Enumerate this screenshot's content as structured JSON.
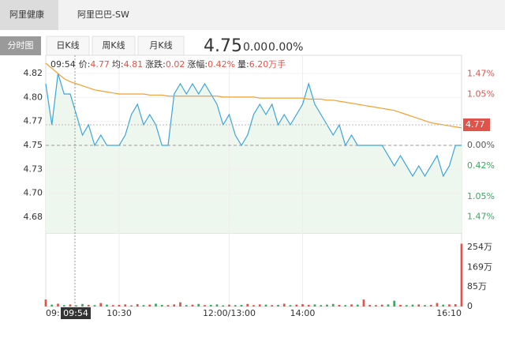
{
  "tabs": [
    "阿里健康",
    "阿里巴巴-SW"
  ],
  "view_buttons": [
    "分时图",
    "日K线",
    "周K线",
    "月K线"
  ],
  "quote": {
    "price": "4.75",
    "change": "0.00",
    "change_pct": "0.00%"
  },
  "chart_data": [
    {
      "type": "line",
      "categories": [
        "09:",
        null,
        null,
        null,
        null,
        null,
        null,
        null,
        null,
        null,
        null,
        null,
        "10:30",
        null,
        null,
        null,
        null,
        null,
        null,
        null,
        null,
        null,
        null,
        null,
        null,
        null,
        null,
        null,
        null,
        null,
        "12:00/13:00",
        null,
        null,
        null,
        null,
        null,
        null,
        null,
        null,
        null,
        null,
        null,
        "14:00",
        null,
        null,
        null,
        null,
        null,
        null,
        null,
        null,
        null,
        null,
        null,
        null,
        null,
        null,
        null,
        null,
        null,
        null,
        null,
        null,
        null,
        null,
        null,
        null,
        null,
        "16:10"
      ],
      "series": [
        {
          "name": "价",
          "color": "#3ba4d8",
          "values": [
            4.81,
            4.77,
            4.82,
            4.8,
            4.8,
            4.78,
            4.76,
            4.77,
            4.75,
            4.76,
            4.75,
            4.75,
            4.75,
            4.76,
            4.78,
            4.79,
            4.77,
            4.78,
            4.77,
            4.75,
            4.75,
            4.8,
            4.81,
            4.8,
            4.81,
            4.8,
            4.81,
            4.8,
            4.79,
            4.77,
            4.78,
            4.76,
            4.75,
            4.76,
            4.78,
            4.79,
            4.78,
            4.79,
            4.77,
            4.78,
            4.77,
            4.78,
            4.79,
            4.81,
            4.79,
            4.78,
            4.77,
            4.76,
            4.77,
            4.75,
            4.76,
            4.75,
            4.75,
            4.75,
            4.75,
            4.75,
            4.74,
            4.73,
            4.74,
            4.73,
            4.72,
            4.73,
            4.72,
            4.73,
            4.74,
            4.72,
            4.73,
            4.75,
            4.75
          ]
        },
        {
          "name": "均",
          "color": "#f0a030",
          "values": [
            4.83,
            4.825,
            4.82,
            4.815,
            4.812,
            4.81,
            4.808,
            4.806,
            4.804,
            4.803,
            4.802,
            4.801,
            4.8,
            4.8,
            4.8,
            4.8,
            4.8,
            4.799,
            4.799,
            4.799,
            4.798,
            4.798,
            4.798,
            4.798,
            4.798,
            4.798,
            4.798,
            4.798,
            4.798,
            4.797,
            4.797,
            4.797,
            4.797,
            4.797,
            4.797,
            4.796,
            4.796,
            4.796,
            4.796,
            4.796,
            4.796,
            4.796,
            4.796,
            4.795,
            4.795,
            4.795,
            4.794,
            4.794,
            4.793,
            4.792,
            4.791,
            4.79,
            4.789,
            4.788,
            4.787,
            4.786,
            4.785,
            4.784,
            4.782,
            4.78,
            4.778,
            4.776,
            4.774,
            4.772,
            4.771,
            4.77,
            4.769,
            4.768,
            4.767
          ]
        }
      ],
      "area_color": "#eef7ee",
      "prev_close": 4.75,
      "ylim": [
        4.6646,
        4.8377
      ],
      "yticks": [
        4.82,
        {
          "value": 4.7967,
          "label": "4.80"
        },
        {
          "value": 4.7733,
          "label": "4.77"
        },
        4.75,
        {
          "value": 4.7267,
          "label": "4.73"
        },
        {
          "value": 4.7033,
          "label": "4.70"
        },
        4.68
      ],
      "y2lim": [
        -1.8,
        1.85
      ],
      "y2ticks": [
        {
          "value": 1.47,
          "label": "1.47%"
        },
        {
          "value": 1.05,
          "label": "1.05%"
        },
        {
          "value": 0,
          "label": "0.00%"
        },
        {
          "value": -0.42,
          "label": "0.42%"
        },
        {
          "value": -1.05,
          "label": "1.05%"
        },
        {
          "value": -1.47,
          "label": "1.47%"
        }
      ],
      "crosshair": {
        "time": "09:54",
        "price": 4.77,
        "readout": [
          {
            "label": "价:",
            "value": "4.77"
          },
          {
            "label": "均:",
            "value": "4.81"
          },
          {
            "label": "涨跌:",
            "value": "0.02"
          },
          {
            "label": "涨幅:",
            "value": "0.42%"
          },
          {
            "label": "量:",
            "value": "6.20万手"
          }
        ]
      },
      "grid": true
    },
    {
      "type": "bar",
      "values": [
        300000,
        80000,
        120000,
        60000,
        90000,
        50000,
        110000,
        70000,
        60000,
        150000,
        80000,
        60000,
        70000,
        90000,
        50000,
        100000,
        60000,
        80000,
        120000,
        70000,
        60000,
        90000,
        180000,
        60000,
        80000,
        110000,
        60000,
        70000,
        90000,
        50000,
        80000,
        60000,
        70000,
        110000,
        60000,
        90000,
        80000,
        60000,
        70000,
        120000,
        60000,
        80000,
        100000,
        70000,
        90000,
        60000,
        80000,
        110000,
        70000,
        60000,
        90000,
        80000,
        300000,
        70000,
        60000,
        80000,
        90000,
        250000,
        70000,
        60000,
        80000,
        90000,
        60000,
        70000,
        150000,
        80000,
        90000,
        100000,
        2700000
      ],
      "up_color": "#e0534a",
      "down_color": "#3aa860",
      "ylim": [
        0,
        3160000
      ],
      "yticks": [
        0,
        {
          "value": 850000,
          "label": "85万"
        },
        {
          "value": 1690000,
          "label": "169万"
        },
        {
          "value": 2540000,
          "label": "254万"
        }
      ]
    }
  ]
}
